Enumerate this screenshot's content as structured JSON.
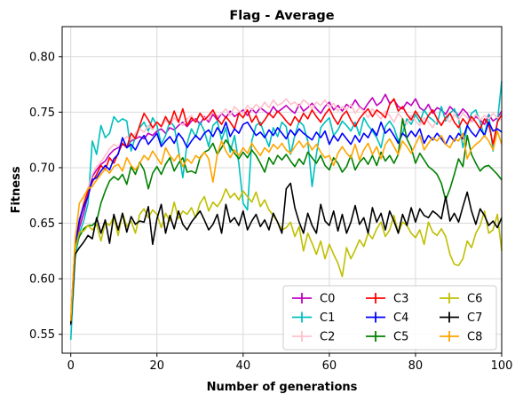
{
  "chart_data": {
    "type": "line",
    "title": "Flag - Average",
    "xlabel": "Number of generations",
    "ylabel": "Fitness",
    "xlim": [
      -2,
      100
    ],
    "ylim": [
      0.533,
      0.827
    ],
    "xticks": [
      0,
      20,
      40,
      60,
      80,
      100
    ],
    "yticks": [
      0.55,
      0.6,
      0.65,
      0.7,
      0.75,
      0.8
    ],
    "xtick_labels": [
      "0",
      "20",
      "40",
      "60",
      "80",
      "100"
    ],
    "ytick_labels": [
      "0.55",
      "0.60",
      "0.65",
      "0.70",
      "0.75",
      "0.80"
    ],
    "grid": true,
    "legend_position": "lower-right",
    "legend_columns": 3,
    "x": [
      0,
      1,
      2,
      3,
      4,
      5,
      6,
      7,
      8,
      9,
      10,
      11,
      12,
      13,
      14,
      15,
      16,
      17,
      18,
      19,
      20,
      21,
      22,
      23,
      24,
      25,
      26,
      27,
      28,
      29,
      30,
      31,
      32,
      33,
      34,
      35,
      36,
      37,
      38,
      39,
      40,
      41,
      42,
      43,
      44,
      45,
      46,
      47,
      48,
      49,
      50,
      51,
      52,
      53,
      54,
      55,
      56,
      57,
      58,
      59,
      60,
      61,
      62,
      63,
      64,
      65,
      66,
      67,
      68,
      69,
      70,
      71,
      72,
      73,
      74,
      75,
      76,
      77,
      78,
      79,
      80,
      81,
      82,
      83,
      84,
      85,
      86,
      87,
      88,
      89,
      90,
      91,
      92,
      93,
      94,
      95,
      96,
      97,
      98,
      99,
      100
    ],
    "series": [
      {
        "name": "C0",
        "color": "#bf00bf",
        "values": [
          0.558,
          0.628,
          0.646,
          0.659,
          0.676,
          0.692,
          0.698,
          0.703,
          0.706,
          0.712,
          0.716,
          0.718,
          0.721,
          0.719,
          0.724,
          0.726,
          0.728,
          0.726,
          0.731,
          0.729,
          0.733,
          0.735,
          0.731,
          0.736,
          0.734,
          0.738,
          0.741,
          0.737,
          0.742,
          0.744,
          0.739,
          0.746,
          0.741,
          0.748,
          0.743,
          0.749,
          0.745,
          0.751,
          0.746,
          0.749,
          0.752,
          0.747,
          0.753,
          0.749,
          0.754,
          0.751,
          0.748,
          0.755,
          0.75,
          0.753,
          0.756,
          0.752,
          0.749,
          0.757,
          0.751,
          0.754,
          0.758,
          0.753,
          0.749,
          0.755,
          0.759,
          0.752,
          0.756,
          0.751,
          0.757,
          0.754,
          0.761,
          0.755,
          0.752,
          0.758,
          0.763,
          0.756,
          0.759,
          0.766,
          0.758,
          0.761,
          0.755,
          0.753,
          0.759,
          0.756,
          0.762,
          0.754,
          0.751,
          0.757,
          0.749,
          0.754,
          0.752,
          0.748,
          0.755,
          0.751,
          0.747,
          0.753,
          0.749,
          0.741,
          0.746,
          0.743,
          0.739,
          0.748,
          0.742,
          0.745,
          0.751
        ]
      },
      {
        "name": "C1",
        "color": "#00bfbf",
        "values": [
          0.545,
          0.618,
          0.641,
          0.652,
          0.668,
          0.724,
          0.712,
          0.738,
          0.727,
          0.731,
          0.746,
          0.741,
          0.744,
          0.742,
          0.715,
          0.728,
          0.736,
          0.741,
          0.733,
          0.745,
          0.738,
          0.721,
          0.729,
          0.742,
          0.737,
          0.716,
          0.691,
          0.722,
          0.735,
          0.728,
          0.741,
          0.733,
          0.719,
          0.738,
          0.742,
          0.725,
          0.736,
          0.714,
          0.729,
          0.704,
          0.668,
          0.662,
          0.724,
          0.738,
          0.741,
          0.729,
          0.719,
          0.736,
          0.728,
          0.741,
          0.737,
          0.712,
          0.729,
          0.742,
          0.738,
          0.724,
          0.683,
          0.712,
          0.736,
          0.741,
          0.745,
          0.729,
          0.734,
          0.742,
          0.738,
          0.733,
          0.741,
          0.729,
          0.745,
          0.738,
          0.733,
          0.727,
          0.718,
          0.737,
          0.742,
          0.736,
          0.724,
          0.731,
          0.744,
          0.739,
          0.748,
          0.741,
          0.752,
          0.746,
          0.743,
          0.739,
          0.755,
          0.742,
          0.749,
          0.753,
          0.744,
          0.718,
          0.737,
          0.749,
          0.752,
          0.741,
          0.728,
          0.748,
          0.715,
          0.741,
          0.778
        ]
      },
      {
        "name": "C2",
        "color": "#ffc0cb",
        "values": [
          0.56,
          0.631,
          0.655,
          0.669,
          0.682,
          0.694,
          0.701,
          0.705,
          0.711,
          0.717,
          0.721,
          0.719,
          0.724,
          0.728,
          0.725,
          0.731,
          0.735,
          0.732,
          0.738,
          0.734,
          0.741,
          0.737,
          0.743,
          0.739,
          0.745,
          0.741,
          0.738,
          0.744,
          0.747,
          0.741,
          0.749,
          0.745,
          0.743,
          0.751,
          0.746,
          0.749,
          0.753,
          0.747,
          0.755,
          0.751,
          0.749,
          0.756,
          0.752,
          0.757,
          0.753,
          0.759,
          0.754,
          0.761,
          0.756,
          0.758,
          0.762,
          0.757,
          0.759,
          0.755,
          0.761,
          0.758,
          0.753,
          0.759,
          0.756,
          0.761,
          0.754,
          0.758,
          0.751,
          0.755,
          0.752,
          0.757,
          0.749,
          0.754,
          0.751,
          0.745,
          0.753,
          0.748,
          0.744,
          0.751,
          0.747,
          0.741,
          0.749,
          0.744,
          0.739,
          0.747,
          0.742,
          0.738,
          0.745,
          0.741,
          0.736,
          0.743,
          0.739,
          0.745,
          0.741,
          0.748,
          0.743,
          0.749,
          0.745,
          0.741,
          0.748,
          0.743,
          0.747,
          0.744,
          0.749,
          0.745,
          0.743
        ]
      },
      {
        "name": "C3",
        "color": "#ff0000",
        "values": [
          0.562,
          0.632,
          0.651,
          0.667,
          0.679,
          0.687,
          0.694,
          0.702,
          0.698,
          0.709,
          0.704,
          0.713,
          0.722,
          0.718,
          0.731,
          0.726,
          0.738,
          0.749,
          0.743,
          0.736,
          0.741,
          0.737,
          0.746,
          0.739,
          0.751,
          0.741,
          0.753,
          0.738,
          0.745,
          0.741,
          0.749,
          0.743,
          0.747,
          0.752,
          0.744,
          0.739,
          0.746,
          0.741,
          0.735,
          0.749,
          0.745,
          0.752,
          0.741,
          0.747,
          0.738,
          0.743,
          0.749,
          0.745,
          0.751,
          0.747,
          0.742,
          0.738,
          0.746,
          0.741,
          0.749,
          0.744,
          0.752,
          0.746,
          0.741,
          0.748,
          0.753,
          0.745,
          0.739,
          0.747,
          0.751,
          0.743,
          0.737,
          0.744,
          0.749,
          0.753,
          0.746,
          0.752,
          0.749,
          0.745,
          0.757,
          0.762,
          0.751,
          0.755,
          0.748,
          0.743,
          0.751,
          0.745,
          0.739,
          0.747,
          0.752,
          0.744,
          0.738,
          0.745,
          0.749,
          0.741,
          0.736,
          0.744,
          0.739,
          0.746,
          0.741,
          0.735,
          0.744,
          0.739,
          0.721,
          0.741,
          0.748
        ]
      },
      {
        "name": "C4",
        "color": "#0000ff",
        "values": [
          0.56,
          0.629,
          0.653,
          0.665,
          0.674,
          0.689,
          0.691,
          0.697,
          0.702,
          0.698,
          0.708,
          0.712,
          0.727,
          0.718,
          0.721,
          0.716,
          0.724,
          0.729,
          0.721,
          0.726,
          0.731,
          0.719,
          0.724,
          0.728,
          0.722,
          0.731,
          0.726,
          0.718,
          0.724,
          0.729,
          0.725,
          0.731,
          0.734,
          0.728,
          0.736,
          0.731,
          0.741,
          0.728,
          0.735,
          0.731,
          0.739,
          0.741,
          0.735,
          0.729,
          0.732,
          0.727,
          0.734,
          0.729,
          0.736,
          0.731,
          0.726,
          0.734,
          0.729,
          0.735,
          0.731,
          0.728,
          0.725,
          0.732,
          0.727,
          0.733,
          0.721,
          0.729,
          0.724,
          0.731,
          0.726,
          0.721,
          0.729,
          0.723,
          0.731,
          0.727,
          0.735,
          0.729,
          0.741,
          0.731,
          0.735,
          0.729,
          0.722,
          0.731,
          0.727,
          0.733,
          0.728,
          0.735,
          0.722,
          0.729,
          0.725,
          0.731,
          0.726,
          0.721,
          0.729,
          0.724,
          0.731,
          0.726,
          0.738,
          0.732,
          0.728,
          0.735,
          0.729,
          0.741,
          0.733,
          0.735,
          0.732
        ]
      },
      {
        "name": "C5",
        "color": "#008000",
        "values": [
          0.561,
          0.627,
          0.638,
          0.645,
          0.648,
          0.648,
          0.652,
          0.668,
          0.679,
          0.688,
          0.692,
          0.689,
          0.694,
          0.685,
          0.701,
          0.694,
          0.705,
          0.698,
          0.681,
          0.695,
          0.701,
          0.694,
          0.703,
          0.709,
          0.697,
          0.704,
          0.709,
          0.696,
          0.697,
          0.695,
          0.709,
          0.714,
          0.716,
          0.722,
          0.712,
          0.718,
          0.725,
          0.719,
          0.713,
          0.708,
          0.714,
          0.709,
          0.716,
          0.711,
          0.704,
          0.696,
          0.709,
          0.703,
          0.711,
          0.707,
          0.712,
          0.706,
          0.701,
          0.708,
          0.703,
          0.714,
          0.709,
          0.704,
          0.711,
          0.702,
          0.698,
          0.709,
          0.704,
          0.696,
          0.701,
          0.711,
          0.698,
          0.705,
          0.709,
          0.703,
          0.711,
          0.702,
          0.714,
          0.706,
          0.711,
          0.704,
          0.712,
          0.744,
          0.726,
          0.718,
          0.704,
          0.713,
          0.707,
          0.701,
          0.698,
          0.694,
          0.686,
          0.671,
          0.681,
          0.694,
          0.708,
          0.701,
          0.729,
          0.712,
          0.704,
          0.697,
          0.701,
          0.702,
          0.698,
          0.694,
          0.689
        ]
      },
      {
        "name": "C6",
        "color": "#bfbf00",
        "values": [
          0.561,
          0.626,
          0.642,
          0.643,
          0.648,
          0.644,
          0.649,
          0.634,
          0.651,
          0.648,
          0.656,
          0.639,
          0.659,
          0.647,
          0.652,
          0.641,
          0.658,
          0.663,
          0.655,
          0.662,
          0.658,
          0.646,
          0.659,
          0.652,
          0.669,
          0.654,
          0.661,
          0.658,
          0.664,
          0.655,
          0.668,
          0.674,
          0.661,
          0.669,
          0.665,
          0.671,
          0.681,
          0.673,
          0.677,
          0.671,
          0.679,
          0.674,
          0.669,
          0.678,
          0.665,
          0.671,
          0.662,
          0.657,
          0.651,
          0.644,
          0.646,
          0.651,
          0.638,
          0.647,
          0.625,
          0.641,
          0.632,
          0.622,
          0.634,
          0.618,
          0.631,
          0.622,
          0.614,
          0.602,
          0.628,
          0.618,
          0.626,
          0.635,
          0.629,
          0.641,
          0.636,
          0.645,
          0.651,
          0.638,
          0.644,
          0.657,
          0.641,
          0.651,
          0.648,
          0.641,
          0.637,
          0.644,
          0.631,
          0.651,
          0.642,
          0.639,
          0.645,
          0.638,
          0.622,
          0.613,
          0.612,
          0.618,
          0.634,
          0.628,
          0.641,
          0.648,
          0.661,
          0.641,
          0.644,
          0.658,
          0.625
        ]
      },
      {
        "name": "C7",
        "color": "#000000",
        "values": [
          0.559,
          0.622,
          0.628,
          0.633,
          0.639,
          0.636,
          0.655,
          0.641,
          0.653,
          0.632,
          0.658,
          0.644,
          0.659,
          0.642,
          0.656,
          0.649,
          0.652,
          0.651,
          0.665,
          0.631,
          0.654,
          0.667,
          0.641,
          0.657,
          0.645,
          0.661,
          0.649,
          0.644,
          0.651,
          0.656,
          0.661,
          0.653,
          0.644,
          0.649,
          0.658,
          0.641,
          0.667,
          0.651,
          0.655,
          0.648,
          0.661,
          0.644,
          0.652,
          0.658,
          0.647,
          0.653,
          0.644,
          0.659,
          0.651,
          0.641,
          0.681,
          0.686,
          0.664,
          0.651,
          0.641,
          0.659,
          0.648,
          0.641,
          0.667,
          0.652,
          0.648,
          0.661,
          0.643,
          0.658,
          0.641,
          0.651,
          0.666,
          0.649,
          0.655,
          0.641,
          0.664,
          0.651,
          0.659,
          0.644,
          0.661,
          0.652,
          0.641,
          0.658,
          0.648,
          0.664,
          0.651,
          0.663,
          0.657,
          0.655,
          0.661,
          0.658,
          0.654,
          0.674,
          0.652,
          0.659,
          0.651,
          0.665,
          0.678,
          0.661,
          0.649,
          0.663,
          0.657,
          0.648,
          0.652,
          0.646,
          0.655
        ]
      },
      {
        "name": "C8",
        "color": "#ffa500",
        "values": [
          0.562,
          0.635,
          0.668,
          0.674,
          0.681,
          0.683,
          0.689,
          0.694,
          0.699,
          0.695,
          0.701,
          0.703,
          0.697,
          0.709,
          0.702,
          0.698,
          0.704,
          0.711,
          0.707,
          0.715,
          0.709,
          0.703,
          0.718,
          0.711,
          0.706,
          0.712,
          0.701,
          0.708,
          0.704,
          0.711,
          0.708,
          0.714,
          0.708,
          0.687,
          0.712,
          0.724,
          0.715,
          0.709,
          0.716,
          0.711,
          0.718,
          0.713,
          0.722,
          0.716,
          0.711,
          0.718,
          0.714,
          0.721,
          0.717,
          0.722,
          0.716,
          0.713,
          0.719,
          0.724,
          0.718,
          0.723,
          0.716,
          0.721,
          0.714,
          0.709,
          0.711,
          0.702,
          0.713,
          0.719,
          0.713,
          0.709,
          0.721,
          0.707,
          0.716,
          0.722,
          0.712,
          0.719,
          0.708,
          0.721,
          0.726,
          0.719,
          0.712,
          0.724,
          0.719,
          0.713,
          0.721,
          0.729,
          0.716,
          0.722,
          0.727,
          0.724,
          0.729,
          0.721,
          0.718,
          0.726,
          0.724,
          0.731,
          0.708,
          0.717,
          0.721,
          0.724,
          0.729,
          0.724,
          0.716,
          0.733,
          0.721
        ]
      }
    ]
  }
}
